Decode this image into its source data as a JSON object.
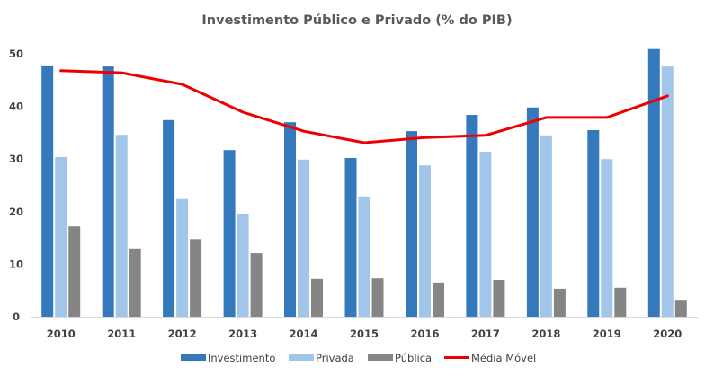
{
  "chart_data": {
    "type": "bar",
    "title": "Investimento Público  e Privado  (% do PIB)",
    "xlabel": "",
    "ylabel": "",
    "ylim": [
      0,
      50
    ],
    "yticks": [
      0,
      10,
      20,
      30,
      40,
      50
    ],
    "grid": false,
    "legend_position": "bottom",
    "categories": [
      "2010",
      "2011",
      "2012",
      "2013",
      "2014",
      "2015",
      "2016",
      "2017",
      "2018",
      "2019",
      "2020"
    ],
    "series": [
      {
        "name": "Investimento",
        "type": "bar",
        "color": "#3579BD",
        "values": [
          47.8,
          47.6,
          37.4,
          31.7,
          37.0,
          30.2,
          35.3,
          38.4,
          39.8,
          35.5,
          50.9
        ]
      },
      {
        "name": "Privada",
        "type": "bar",
        "color": "#A2C6E9",
        "values": [
          30.4,
          34.6,
          22.4,
          19.6,
          29.9,
          22.9,
          28.8,
          31.4,
          34.5,
          30.0,
          47.6
        ]
      },
      {
        "name": "Pública",
        "type": "bar",
        "color": "#858585",
        "values": [
          17.2,
          13.0,
          14.8,
          12.1,
          7.2,
          7.3,
          6.5,
          7.0,
          5.3,
          5.5,
          3.2
        ]
      },
      {
        "name": "Média Móvel",
        "type": "line",
        "color": "#EE0000",
        "values": [
          46.8,
          46.4,
          44.2,
          38.9,
          35.3,
          33.1,
          34.1,
          34.5,
          37.9,
          37.9,
          42.0
        ]
      }
    ]
  }
}
